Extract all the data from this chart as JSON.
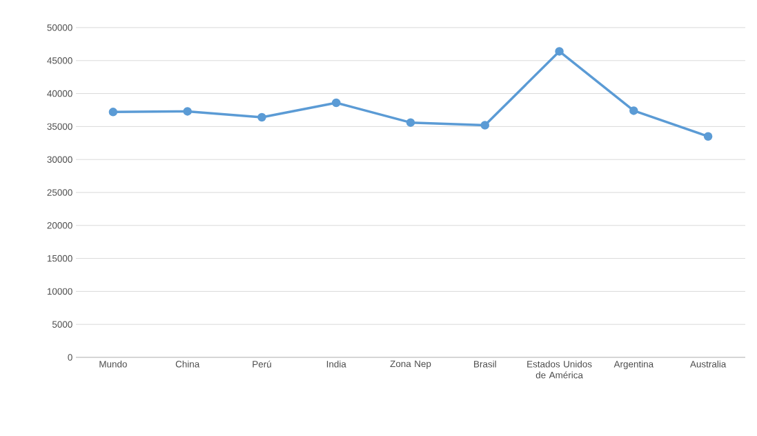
{
  "chart_data": {
    "type": "line",
    "categories": [
      "Mundo",
      "China",
      "Perú",
      "India",
      "Zona Nep",
      "Brasil",
      "Estados Unidos de América",
      "Argentina",
      "Australia"
    ],
    "series": [
      {
        "color": "#5b9bd5",
        "values": [
          37200,
          37300,
          36400,
          38600,
          35600,
          35200,
          46400,
          37400,
          33500
        ]
      }
    ],
    "ylim": [
      0,
      50000
    ],
    "yticks": [
      0,
      5000,
      10000,
      15000,
      20000,
      25000,
      30000,
      35000,
      40000,
      45000,
      50000
    ],
    "grid": "y",
    "marker": "circle",
    "line_style": "solid"
  }
}
